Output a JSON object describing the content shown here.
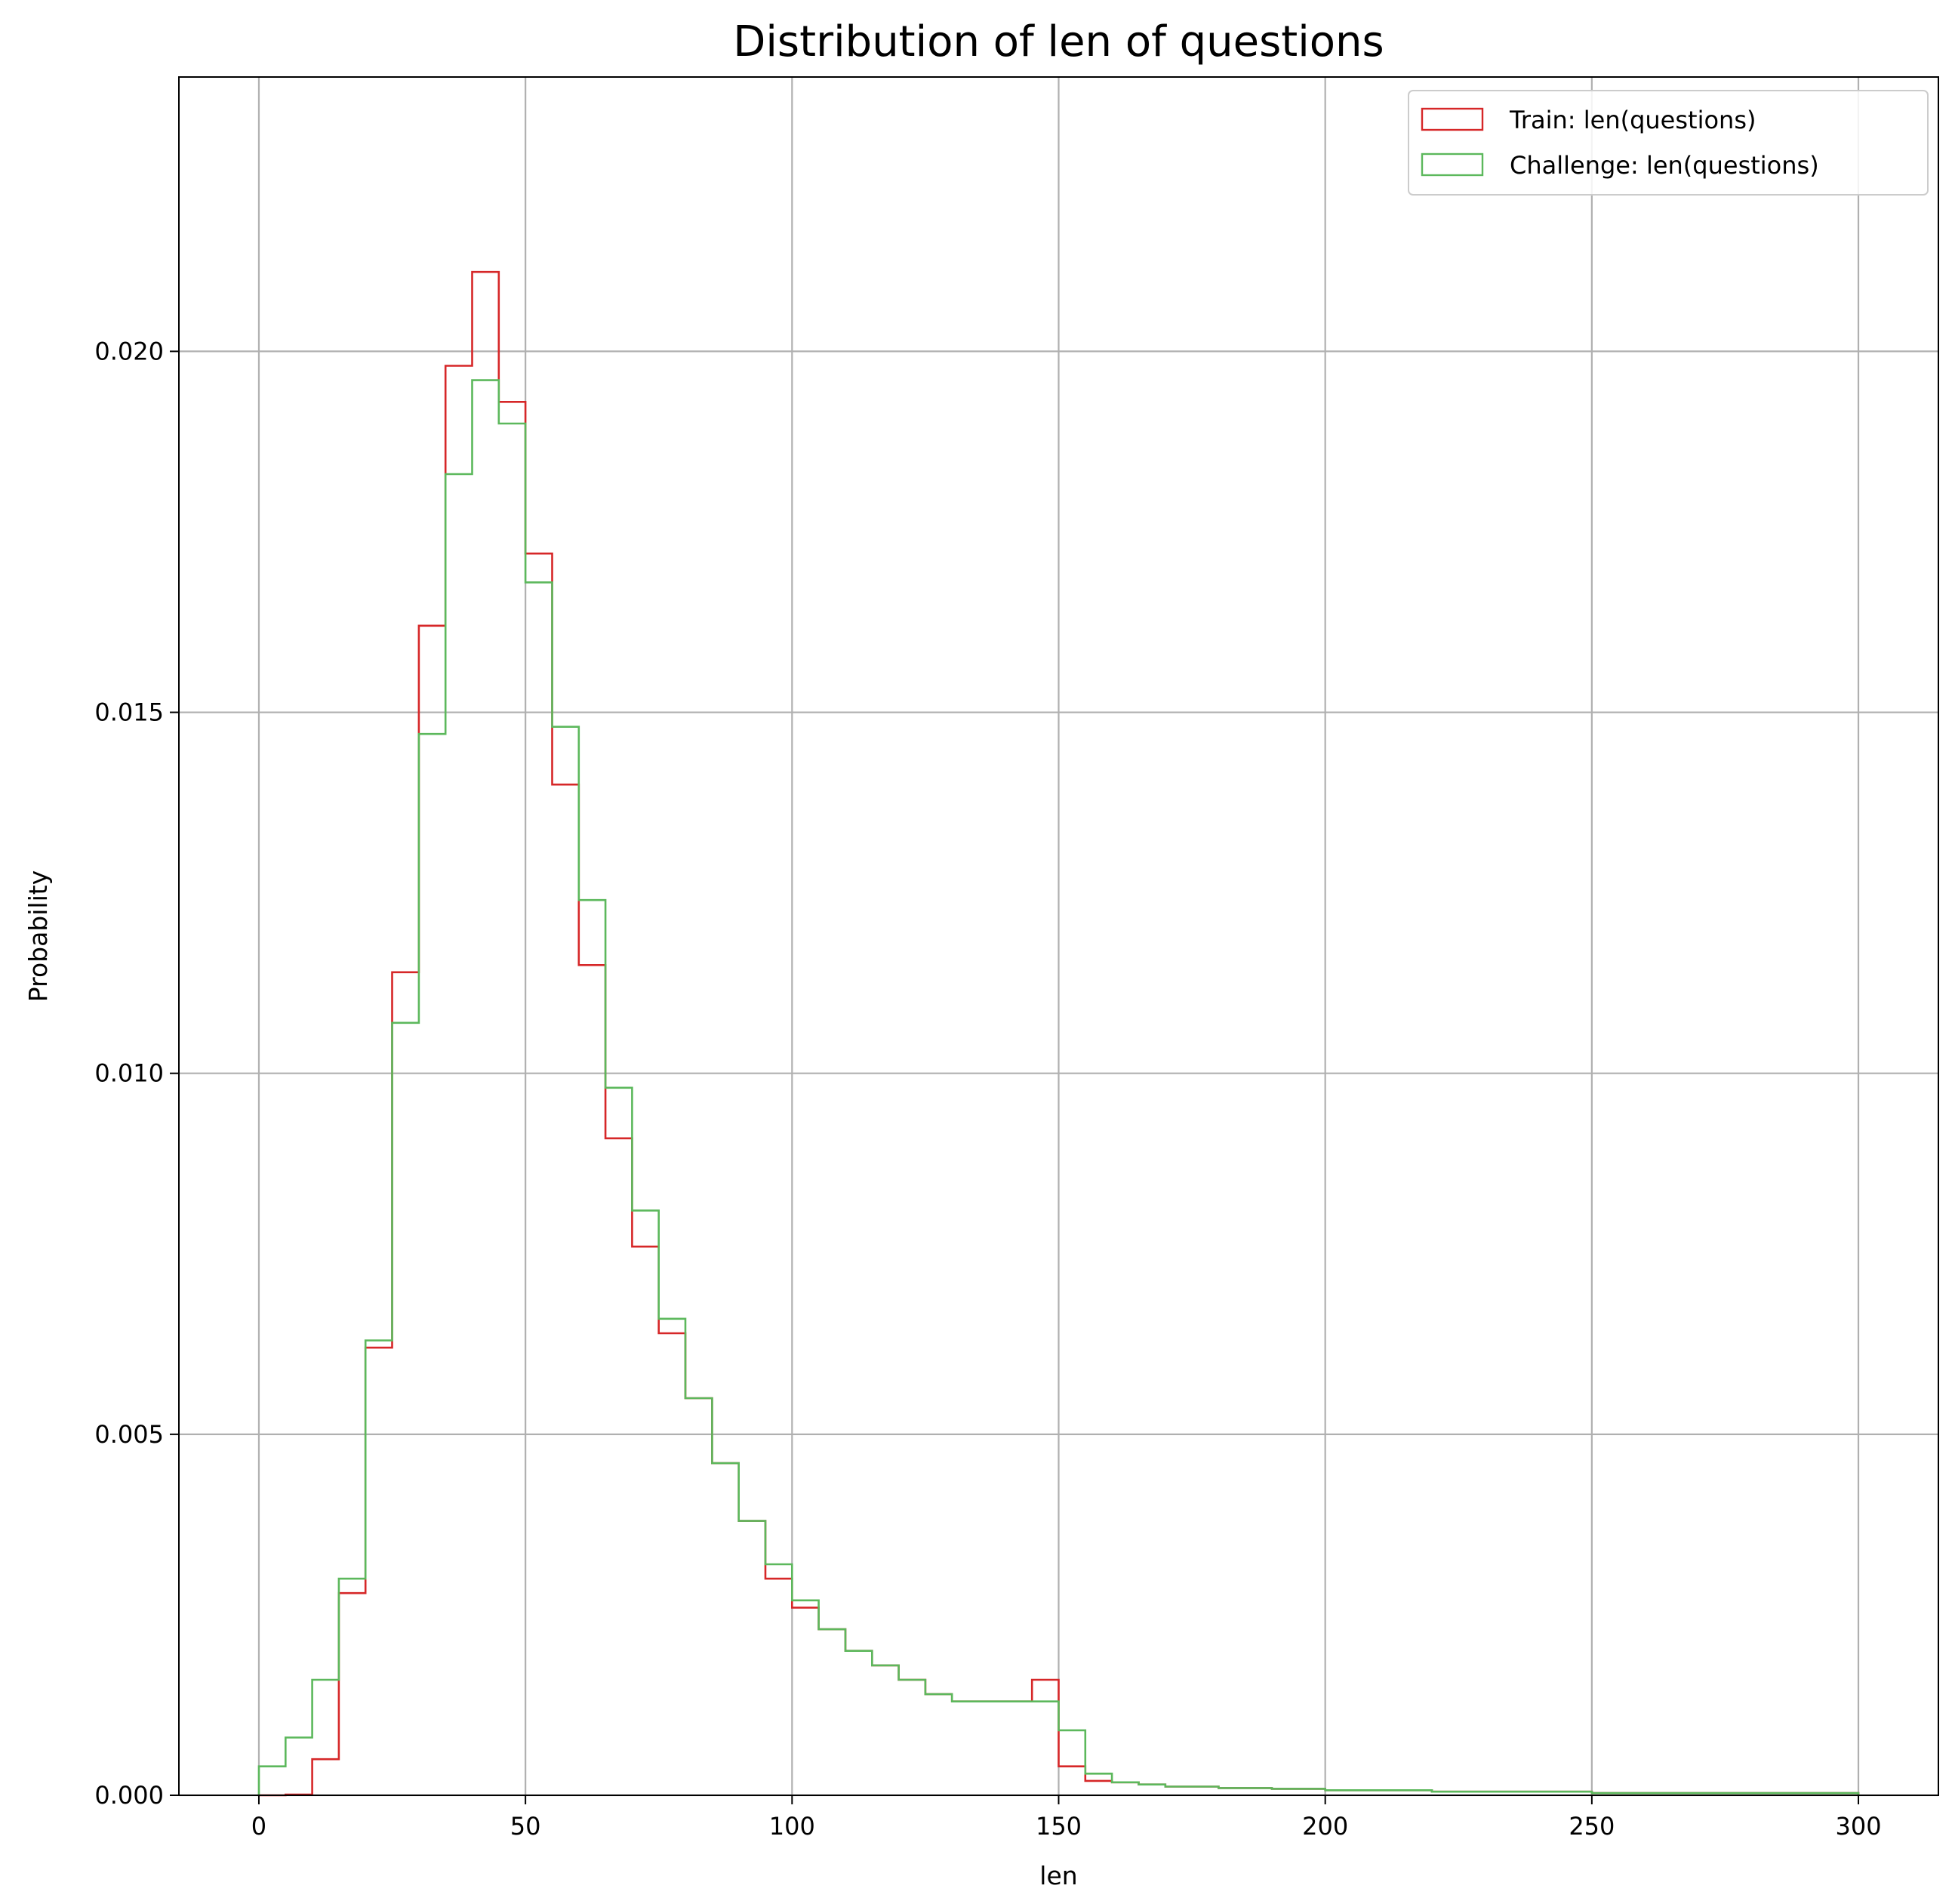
{
  "chart_data": {
    "type": "histogram",
    "title": "Distribution of len of questions",
    "xlabel": "len",
    "ylabel": "Probability",
    "xlim": [
      -15,
      315
    ],
    "ylim": [
      0,
      0.0238
    ],
    "xticks": [
      0,
      50,
      100,
      150,
      200,
      250,
      300
    ],
    "xtick_labels": [
      "0",
      "50",
      "100",
      "150",
      "200",
      "250",
      "300"
    ],
    "yticks": [
      0,
      0.005,
      0.01,
      0.015,
      0.02
    ],
    "ytick_labels": [
      "0.000",
      "0.005",
      "0.010",
      "0.015",
      "0.020"
    ],
    "grid": true,
    "legend_position": "top-right",
    "bin_edges": [
      0,
      5,
      10,
      15,
      20,
      25,
      30,
      35,
      40,
      45,
      50,
      55,
      60,
      65,
      70,
      75,
      80,
      85,
      90,
      95,
      100,
      105,
      110,
      115,
      120,
      125,
      130,
      135,
      140,
      145,
      150,
      155,
      160,
      165,
      170,
      180,
      190,
      200,
      220,
      250,
      300
    ],
    "series": [
      {
        "name": "Train: len(questions)",
        "color": "#d62728",
        "values": [
          0.0,
          1e-05,
          0.0005,
          0.0028,
          0.0062,
          0.0114,
          0.0162,
          0.0198,
          0.0211,
          0.0193,
          0.0172,
          0.014,
          0.0115,
          0.0091,
          0.0076,
          0.0064,
          0.0055,
          0.0046,
          0.0038,
          0.003,
          0.0026,
          0.0023,
          0.002,
          0.0018,
          0.0016,
          0.0014,
          0.0013,
          0.0013,
          0.0013,
          0.0016,
          0.0004,
          0.0002,
          0.00018,
          0.00015,
          0.00012,
          0.0001,
          9e-05,
          7e-05,
          5e-05,
          3e-05
        ]
      },
      {
        "name": "Challenge: len(questions)",
        "color": "#5cb85c",
        "values": [
          0.0004,
          0.0008,
          0.0016,
          0.003,
          0.0063,
          0.0107,
          0.0147,
          0.0183,
          0.0196,
          0.019,
          0.0168,
          0.0148,
          0.0124,
          0.0098,
          0.0081,
          0.0066,
          0.0055,
          0.0046,
          0.0038,
          0.0032,
          0.0027,
          0.0023,
          0.002,
          0.0018,
          0.0016,
          0.0014,
          0.0013,
          0.0013,
          0.0013,
          0.0013,
          0.0009,
          0.0003,
          0.00018,
          0.00015,
          0.00012,
          0.0001,
          9e-05,
          7e-05,
          5e-05,
          3e-05
        ]
      }
    ]
  }
}
